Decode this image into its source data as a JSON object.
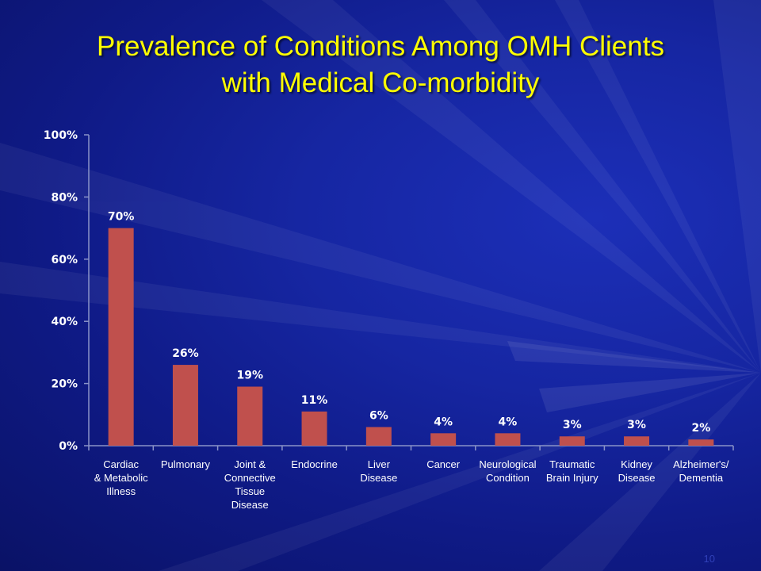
{
  "slide": {
    "title_line1": "Prevalence of Conditions Among OMH Clients",
    "title_line2": "with Medical Co-morbidity",
    "page_number": "10"
  },
  "colors": {
    "title": "#ffff00",
    "bar": "#c0504d",
    "text": "#ffffff",
    "background": "#1626a2"
  },
  "chart_data": {
    "type": "bar",
    "categories": [
      [
        "Cardiac",
        "& Metabolic",
        "Illness"
      ],
      [
        "Pulmonary"
      ],
      [
        "Joint &",
        "Connective",
        "Tissue",
        "Disease"
      ],
      [
        "Endocrine"
      ],
      [
        "Liver",
        "Disease"
      ],
      [
        "Cancer"
      ],
      [
        "Neurological",
        "Condition"
      ],
      [
        "Traumatic",
        "Brain Injury"
      ],
      [
        "Kidney",
        "Disease"
      ],
      [
        "Alzheimer's/",
        "Dementia"
      ]
    ],
    "values": [
      70,
      26,
      19,
      11,
      6,
      4,
      4,
      3,
      3,
      2
    ],
    "data_labels": [
      "70%",
      "26%",
      "19%",
      "11%",
      "6%",
      "4%",
      "4%",
      "3%",
      "3%",
      "2%"
    ],
    "y_ticks": [
      0,
      20,
      40,
      60,
      80,
      100
    ],
    "y_tick_labels": [
      "0%",
      "20%",
      "40%",
      "60%",
      "80%",
      "100%"
    ],
    "ylim": [
      0,
      100
    ],
    "grid": false,
    "legend": "none"
  }
}
